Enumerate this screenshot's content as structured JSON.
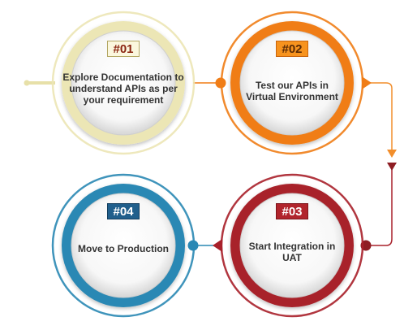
{
  "steps": [
    {
      "badge": "#01",
      "text": "Explore Documentation to understand APIs as per your requirement",
      "color": "#ece6b5",
      "badge_bg": "#fbf7de",
      "badge_border": "#b4a864",
      "badge_text": "#8a2410"
    },
    {
      "badge": "#02",
      "text": "Test our APIs in Virtual Environment",
      "color": "#f07d16",
      "badge_bg": "#f7931e",
      "badge_border": "#c9640c",
      "badge_text": "#5a2a05"
    },
    {
      "badge": "#03",
      "text": "Start Integration in UAT",
      "color": "#a8202a",
      "badge_bg": "#b1242c",
      "badge_border": "#7d141a",
      "badge_text": "#ffffff"
    },
    {
      "badge": "#04",
      "text": "Move to Production",
      "color": "#2a88b4",
      "badge_bg": "#205f8c",
      "badge_border": "#133e5e",
      "badge_text": "#ffffff"
    }
  ]
}
